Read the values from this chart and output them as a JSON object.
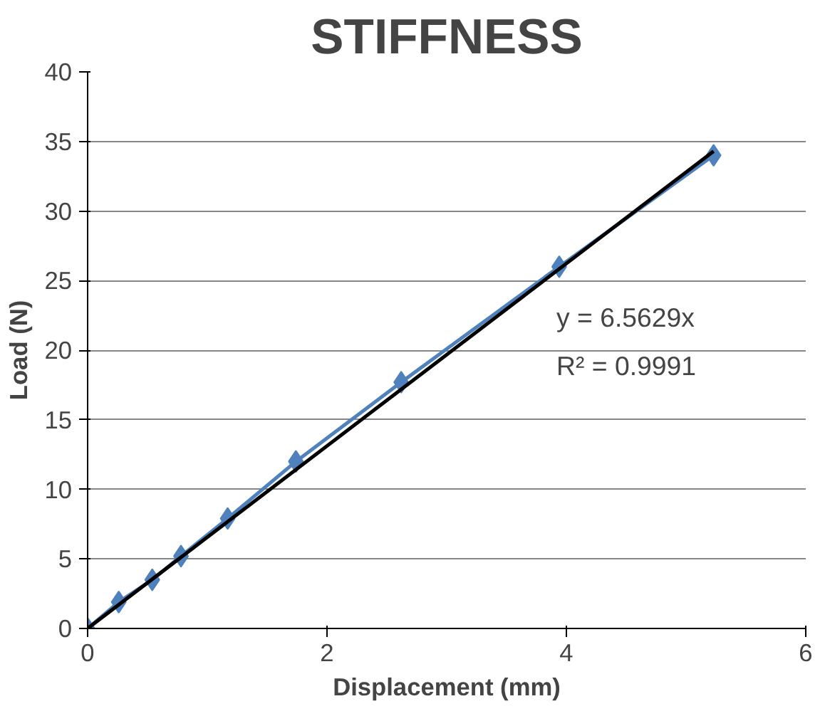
{
  "chart_data": {
    "type": "line",
    "title": "STIFFNESS",
    "xlabel": "Displacement (mm)",
    "ylabel": "Load (N)",
    "x": [
      0,
      0.26,
      0.54,
      0.78,
      1.17,
      1.74,
      2.62,
      3.94,
      5.23
    ],
    "series": [
      {
        "color": "#4f81bd",
        "values": [
          0,
          1.9,
          3.5,
          5.2,
          7.9,
          12.0,
          17.7,
          26.0,
          34.0
        ],
        "marker": "diamond",
        "line_style": "solid"
      },
      {
        "type": "line",
        "color": "#000000",
        "x": [
          0,
          5.23
        ],
        "values": [
          0,
          34.3
        ],
        "marker": "none",
        "line_style": "solid"
      }
    ],
    "annotations": [
      "y = 6.5629x",
      "R² = 0.9991"
    ],
    "xlim": [
      0,
      6
    ],
    "xticks": [
      0,
      2,
      4,
      6
    ],
    "ylim": [
      0,
      40
    ],
    "yticks": [
      0,
      5,
      10,
      15,
      20,
      25,
      30,
      35,
      40
    ],
    "grid": "y"
  }
}
